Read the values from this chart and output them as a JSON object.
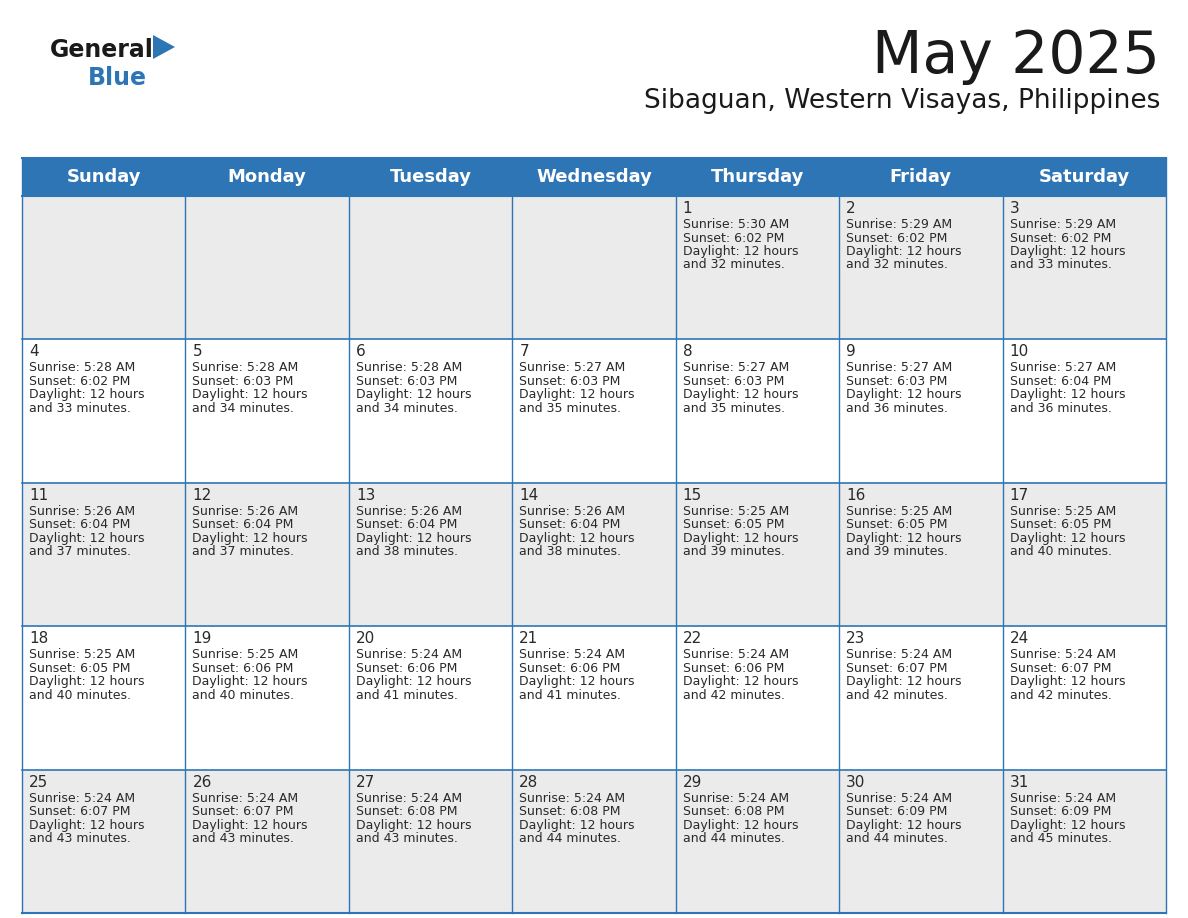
{
  "title": "May 2025",
  "subtitle": "Sibaguan, Western Visayas, Philippines",
  "header_bg_color": "#2E75B6",
  "header_text_color": "#FFFFFF",
  "bg_color": "#FFFFFF",
  "row0_color": "#EBEBEB",
  "row1_color": "#FFFFFF",
  "row2_color": "#EBEBEB",
  "row3_color": "#FFFFFF",
  "row4_color": "#EBEBEB",
  "border_color": "#2E75B6",
  "cell_line_color": "#AAAAAA",
  "day_names": [
    "Sunday",
    "Monday",
    "Tuesday",
    "Wednesday",
    "Thursday",
    "Friday",
    "Saturday"
  ],
  "title_fontsize": 42,
  "subtitle_fontsize": 19,
  "header_fontsize": 13,
  "day_num_fontsize": 11,
  "cell_fontsize": 9,
  "days": [
    {
      "day": 1,
      "col": 4,
      "row": 0,
      "sunrise": "5:30 AM",
      "sunset": "6:02 PM",
      "daylight_hours": "12 hours",
      "daylight_minutes": "and 32 minutes."
    },
    {
      "day": 2,
      "col": 5,
      "row": 0,
      "sunrise": "5:29 AM",
      "sunset": "6:02 PM",
      "daylight_hours": "12 hours",
      "daylight_minutes": "and 32 minutes."
    },
    {
      "day": 3,
      "col": 6,
      "row": 0,
      "sunrise": "5:29 AM",
      "sunset": "6:02 PM",
      "daylight_hours": "12 hours",
      "daylight_minutes": "and 33 minutes."
    },
    {
      "day": 4,
      "col": 0,
      "row": 1,
      "sunrise": "5:28 AM",
      "sunset": "6:02 PM",
      "daylight_hours": "12 hours",
      "daylight_minutes": "and 33 minutes."
    },
    {
      "day": 5,
      "col": 1,
      "row": 1,
      "sunrise": "5:28 AM",
      "sunset": "6:03 PM",
      "daylight_hours": "12 hours",
      "daylight_minutes": "and 34 minutes."
    },
    {
      "day": 6,
      "col": 2,
      "row": 1,
      "sunrise": "5:28 AM",
      "sunset": "6:03 PM",
      "daylight_hours": "12 hours",
      "daylight_minutes": "and 34 minutes."
    },
    {
      "day": 7,
      "col": 3,
      "row": 1,
      "sunrise": "5:27 AM",
      "sunset": "6:03 PM",
      "daylight_hours": "12 hours",
      "daylight_minutes": "and 35 minutes."
    },
    {
      "day": 8,
      "col": 4,
      "row": 1,
      "sunrise": "5:27 AM",
      "sunset": "6:03 PM",
      "daylight_hours": "12 hours",
      "daylight_minutes": "and 35 minutes."
    },
    {
      "day": 9,
      "col": 5,
      "row": 1,
      "sunrise": "5:27 AM",
      "sunset": "6:03 PM",
      "daylight_hours": "12 hours",
      "daylight_minutes": "and 36 minutes."
    },
    {
      "day": 10,
      "col": 6,
      "row": 1,
      "sunrise": "5:27 AM",
      "sunset": "6:04 PM",
      "daylight_hours": "12 hours",
      "daylight_minutes": "and 36 minutes."
    },
    {
      "day": 11,
      "col": 0,
      "row": 2,
      "sunrise": "5:26 AM",
      "sunset": "6:04 PM",
      "daylight_hours": "12 hours",
      "daylight_minutes": "and 37 minutes."
    },
    {
      "day": 12,
      "col": 1,
      "row": 2,
      "sunrise": "5:26 AM",
      "sunset": "6:04 PM",
      "daylight_hours": "12 hours",
      "daylight_minutes": "and 37 minutes."
    },
    {
      "day": 13,
      "col": 2,
      "row": 2,
      "sunrise": "5:26 AM",
      "sunset": "6:04 PM",
      "daylight_hours": "12 hours",
      "daylight_minutes": "and 38 minutes."
    },
    {
      "day": 14,
      "col": 3,
      "row": 2,
      "sunrise": "5:26 AM",
      "sunset": "6:04 PM",
      "daylight_hours": "12 hours",
      "daylight_minutes": "and 38 minutes."
    },
    {
      "day": 15,
      "col": 4,
      "row": 2,
      "sunrise": "5:25 AM",
      "sunset": "6:05 PM",
      "daylight_hours": "12 hours",
      "daylight_minutes": "and 39 minutes."
    },
    {
      "day": 16,
      "col": 5,
      "row": 2,
      "sunrise": "5:25 AM",
      "sunset": "6:05 PM",
      "daylight_hours": "12 hours",
      "daylight_minutes": "and 39 minutes."
    },
    {
      "day": 17,
      "col": 6,
      "row": 2,
      "sunrise": "5:25 AM",
      "sunset": "6:05 PM",
      "daylight_hours": "12 hours",
      "daylight_minutes": "and 40 minutes."
    },
    {
      "day": 18,
      "col": 0,
      "row": 3,
      "sunrise": "5:25 AM",
      "sunset": "6:05 PM",
      "daylight_hours": "12 hours",
      "daylight_minutes": "and 40 minutes."
    },
    {
      "day": 19,
      "col": 1,
      "row": 3,
      "sunrise": "5:25 AM",
      "sunset": "6:06 PM",
      "daylight_hours": "12 hours",
      "daylight_minutes": "and 40 minutes."
    },
    {
      "day": 20,
      "col": 2,
      "row": 3,
      "sunrise": "5:24 AM",
      "sunset": "6:06 PM",
      "daylight_hours": "12 hours",
      "daylight_minutes": "and 41 minutes."
    },
    {
      "day": 21,
      "col": 3,
      "row": 3,
      "sunrise": "5:24 AM",
      "sunset": "6:06 PM",
      "daylight_hours": "12 hours",
      "daylight_minutes": "and 41 minutes."
    },
    {
      "day": 22,
      "col": 4,
      "row": 3,
      "sunrise": "5:24 AM",
      "sunset": "6:06 PM",
      "daylight_hours": "12 hours",
      "daylight_minutes": "and 42 minutes."
    },
    {
      "day": 23,
      "col": 5,
      "row": 3,
      "sunrise": "5:24 AM",
      "sunset": "6:07 PM",
      "daylight_hours": "12 hours",
      "daylight_minutes": "and 42 minutes."
    },
    {
      "day": 24,
      "col": 6,
      "row": 3,
      "sunrise": "5:24 AM",
      "sunset": "6:07 PM",
      "daylight_hours": "12 hours",
      "daylight_minutes": "and 42 minutes."
    },
    {
      "day": 25,
      "col": 0,
      "row": 4,
      "sunrise": "5:24 AM",
      "sunset": "6:07 PM",
      "daylight_hours": "12 hours",
      "daylight_minutes": "and 43 minutes."
    },
    {
      "day": 26,
      "col": 1,
      "row": 4,
      "sunrise": "5:24 AM",
      "sunset": "6:07 PM",
      "daylight_hours": "12 hours",
      "daylight_minutes": "and 43 minutes."
    },
    {
      "day": 27,
      "col": 2,
      "row": 4,
      "sunrise": "5:24 AM",
      "sunset": "6:08 PM",
      "daylight_hours": "12 hours",
      "daylight_minutes": "and 43 minutes."
    },
    {
      "day": 28,
      "col": 3,
      "row": 4,
      "sunrise": "5:24 AM",
      "sunset": "6:08 PM",
      "daylight_hours": "12 hours",
      "daylight_minutes": "and 44 minutes."
    },
    {
      "day": 29,
      "col": 4,
      "row": 4,
      "sunrise": "5:24 AM",
      "sunset": "6:08 PM",
      "daylight_hours": "12 hours",
      "daylight_minutes": "and 44 minutes."
    },
    {
      "day": 30,
      "col": 5,
      "row": 4,
      "sunrise": "5:24 AM",
      "sunset": "6:09 PM",
      "daylight_hours": "12 hours",
      "daylight_minutes": "and 44 minutes."
    },
    {
      "day": 31,
      "col": 6,
      "row": 4,
      "sunrise": "5:24 AM",
      "sunset": "6:09 PM",
      "daylight_hours": "12 hours",
      "daylight_minutes": "and 45 minutes."
    }
  ]
}
